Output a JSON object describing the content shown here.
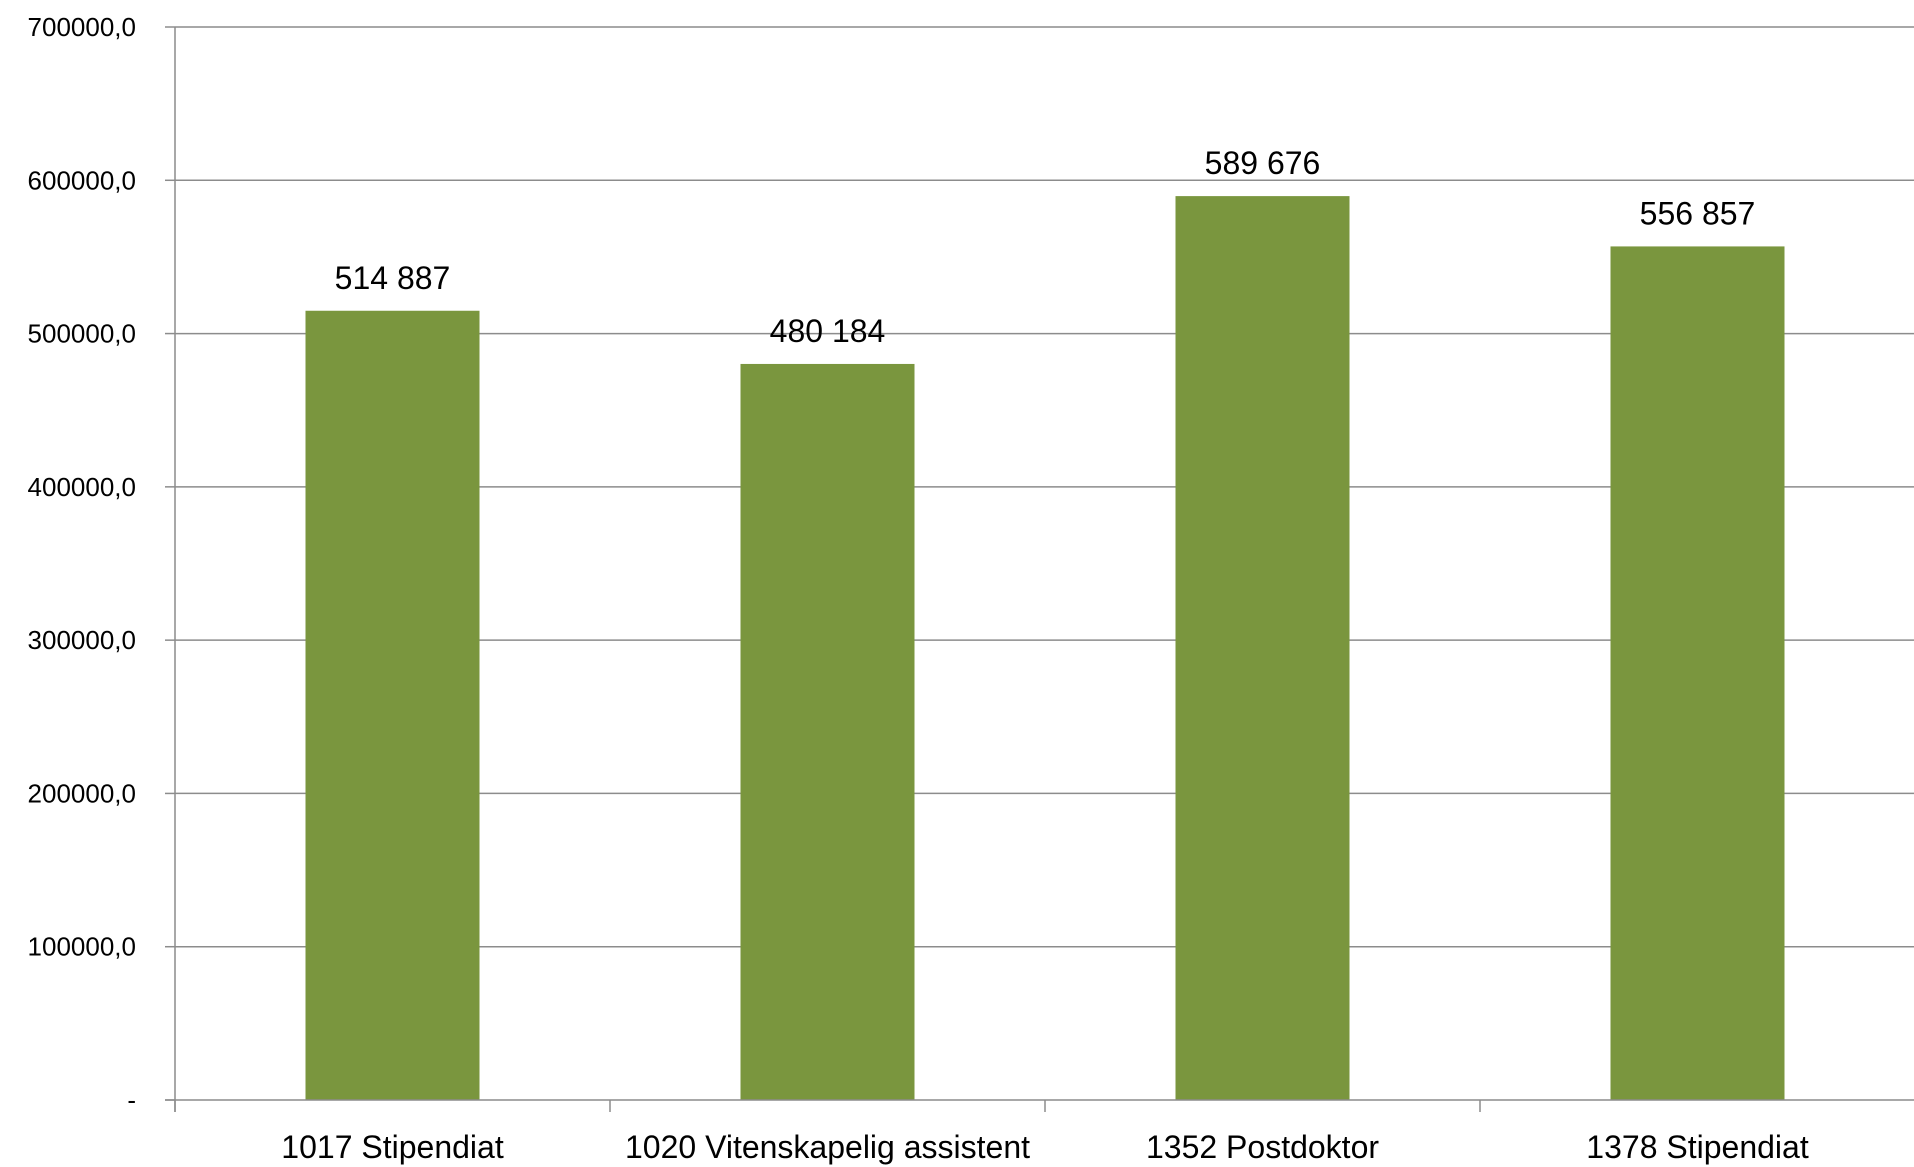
{
  "chart_data": {
    "type": "bar",
    "categories": [
      "1017 Stipendiat",
      "1020 Vitenskapelig assistent",
      "1352 Postdoktor",
      "1378 Stipendiat"
    ],
    "values": [
      514887,
      480184,
      589676,
      556857
    ],
    "data_labels": [
      "514 887",
      "480 184",
      "589 676",
      "556 857"
    ],
    "y_ticks": [
      0,
      100000,
      200000,
      300000,
      400000,
      500000,
      600000,
      700000
    ],
    "y_tick_labels": [
      "-",
      "100000,0",
      "200000,0",
      "300000,0",
      "400000,0",
      "500000,0",
      "600000,0",
      "700000,0"
    ],
    "ylim": [
      0,
      700000
    ],
    "grid": true,
    "bar_color": "#7a963e",
    "title": "",
    "xlabel": "",
    "ylabel": ""
  }
}
